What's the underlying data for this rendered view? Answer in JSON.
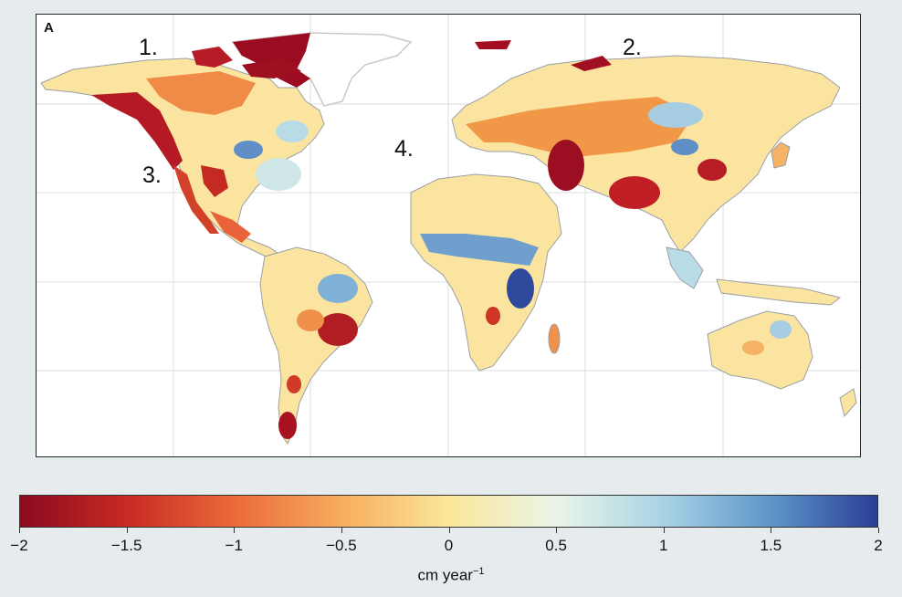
{
  "panel": {
    "letter": "A",
    "annotations": [
      "1.",
      "2.",
      "3.",
      "4."
    ]
  },
  "colorbar": {
    "ticks": [
      "−2",
      "−1.5",
      "−1",
      "−0.5",
      "0",
      "0.5",
      "1",
      "1.5",
      "2"
    ],
    "unit_base": "cm year",
    "unit_exp": "−1",
    "range": [
      -2,
      2
    ],
    "colors": [
      "#8b0a1e",
      "#c82a24",
      "#ea6a3a",
      "#f7ad5e",
      "#fbe69a",
      "#eaf5e8",
      "#a9d3e5",
      "#5f97c9",
      "#2b3d96"
    ]
  },
  "map": {
    "land_neutral": "#fbeeb3",
    "coastline": "#9aa0a6",
    "border": "#56542e",
    "gridlines": "#d9d9d9",
    "ice_outline": "#c8c8c8"
  }
}
